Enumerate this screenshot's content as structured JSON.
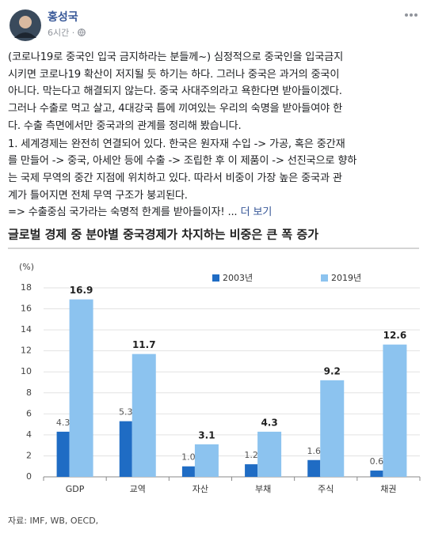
{
  "post": {
    "author": "홍성국",
    "time": "6시간",
    "paragraphs": [
      [
        "(코로나19로 중국인 입국 금지하라는 분들께~) 심정적으로 중국인을 입국금지",
        "시키면 코로나19 확산이 저지될 듯 하기는 하다. 그러나 중국은 과거의 중국이",
        "아니다. 막는다고 해결되지 않는다. 중국 사대주의라고 욕한다면 받아들이겠다.",
        "그러나 수출로 먹고 살고, 4대강국 틈에 끼여있는 우리의 숙명을 받아들여야 한",
        "다. 수출 측면에서만 중국과의 관계를 정리해 봤습니다."
      ],
      [
        "1. 세계경제는 완전히 연결되어 있다. 한국은 원자재 수입 -> 가공, 혹은 중간재",
        "를 만들어 -> 중국, 아세안 등에 수출 -> 조립한 후 이 제품이 -> 선진국으로 향하",
        "는 국제 무역의 중간 지점에 위치하고 있다. 따라서 비중이 가장 높은 중국과 관",
        "계가 틀어지면 전체 무역 구조가 붕괴된다.",
        "=> 수출중심 국가라는 숙명적 한계를 받아들이자! ..."
      ]
    ],
    "see_more": "더 보기"
  },
  "chart_data": {
    "type": "bar",
    "title": "글로벌 경제 중 분야별 중국경제가 차지하는 비중은 큰 폭 증가",
    "y_unit": "(%)",
    "source": "자료: IMF, WB, OECD,",
    "categories": [
      "GDP",
      "교역",
      "자산",
      "부채",
      "주식",
      "채권"
    ],
    "series": [
      {
        "name": "2003년",
        "color": "#1f6cc4",
        "values": [
          4.3,
          5.3,
          1.0,
          1.2,
          1.6,
          0.6
        ],
        "value_labels": [
          "4.3",
          "5.3",
          "1.0",
          "1.2",
          "1.6",
          "0.6"
        ]
      },
      {
        "name": "2019년",
        "color": "#8cc3ef",
        "values": [
          16.9,
          11.7,
          3.1,
          4.3,
          9.2,
          12.6
        ]
      }
    ],
    "ylim": [
      0,
      18
    ],
    "yticks": [
      0,
      2,
      4,
      6,
      8,
      10,
      12,
      14,
      16,
      18
    ],
    "grid": true
  }
}
